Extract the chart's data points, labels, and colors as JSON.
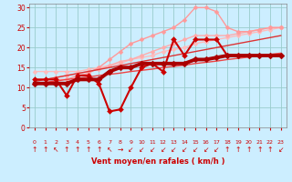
{
  "bg_color": "#cceeff",
  "grid_color": "#99cccc",
  "xlabel": "Vent moyen/en rafales ( km/h )",
  "xlim": [
    -0.5,
    23.5
  ],
  "ylim": [
    0,
    31
  ],
  "yticks": [
    0,
    5,
    10,
    15,
    20,
    25,
    30
  ],
  "xticks": [
    0,
    1,
    2,
    3,
    4,
    5,
    6,
    7,
    8,
    9,
    10,
    11,
    12,
    13,
    14,
    15,
    16,
    17,
    18,
    19,
    20,
    21,
    22,
    23
  ],
  "lines": [
    {
      "x": [
        0,
        1,
        2,
        3,
        4,
        5,
        6,
        7,
        8,
        9,
        10,
        11,
        12,
        13,
        14,
        15,
        16,
        17,
        18,
        19,
        20,
        21,
        22,
        23
      ],
      "y": [
        14,
        14,
        14,
        14,
        14,
        14.5,
        15,
        15.5,
        16,
        17,
        17.5,
        18,
        19,
        19.5,
        20,
        21,
        21.5,
        22,
        22.5,
        23,
        23.5,
        24,
        24.5,
        25
      ],
      "color": "#ffbbbb",
      "lw": 1.0,
      "marker": "D",
      "ms": 2.5,
      "zorder": 2
    },
    {
      "x": [
        0,
        1,
        2,
        3,
        4,
        5,
        6,
        7,
        8,
        9,
        10,
        11,
        12,
        13,
        14,
        15,
        16,
        17,
        18,
        19,
        20,
        21,
        22,
        23
      ],
      "y": [
        12,
        12,
        12.5,
        13,
        13.5,
        14,
        14.5,
        15.5,
        16.5,
        17,
        18,
        19,
        20,
        21,
        22,
        23,
        23,
        23,
        23,
        23.5,
        24,
        24.5,
        25,
        25
      ],
      "color": "#ffaaaa",
      "lw": 1.0,
      "marker": "D",
      "ms": 2.5,
      "zorder": 2
    },
    {
      "x": [
        0,
        1,
        2,
        3,
        4,
        5,
        6,
        7,
        8,
        9,
        10,
        11,
        12,
        13,
        14,
        15,
        16,
        17,
        18,
        19,
        20,
        21,
        22,
        23
      ],
      "y": [
        12,
        12,
        12,
        12,
        13,
        13.5,
        15,
        17,
        19,
        21,
        22,
        23,
        24,
        25,
        27,
        30,
        30,
        29,
        25,
        24,
        24,
        24.5,
        25,
        25
      ],
      "color": "#ff9999",
      "lw": 1.0,
      "marker": "D",
      "ms": 2.5,
      "zorder": 2
    },
    {
      "x": [
        0,
        1,
        2,
        3,
        4,
        5,
        6,
        7,
        8,
        9,
        10,
        11,
        12,
        13,
        14,
        15,
        16,
        17,
        18,
        19,
        20,
        21,
        22,
        23
      ],
      "y": [
        11,
        11.3,
        11.6,
        12,
        12.3,
        12.6,
        13,
        13.3,
        13.6,
        14,
        14.3,
        14.6,
        15,
        15.3,
        15.6,
        16,
        16.3,
        16.6,
        17,
        17.3,
        17.6,
        18,
        18.3,
        18.6
      ],
      "color": "#ee4444",
      "lw": 1.0,
      "marker": null,
      "ms": 0,
      "zorder": 3
    },
    {
      "x": [
        0,
        1,
        2,
        3,
        4,
        5,
        6,
        7,
        8,
        9,
        10,
        11,
        12,
        13,
        14,
        15,
        16,
        17,
        18,
        19,
        20,
        21,
        22,
        23
      ],
      "y": [
        11.5,
        12,
        12.5,
        13,
        13.5,
        14,
        14.5,
        15,
        15.5,
        16,
        16.5,
        17,
        17.5,
        18,
        18.5,
        19,
        19.5,
        20,
        20.5,
        21,
        21.5,
        22,
        22.5,
        23
      ],
      "color": "#dd3333",
      "lw": 1.0,
      "marker": null,
      "ms": 0,
      "zorder": 3
    },
    {
      "x": [
        0,
        1,
        2,
        3,
        4,
        5,
        6,
        7,
        8,
        9,
        10,
        11,
        12,
        13,
        14,
        15,
        16,
        17,
        18,
        19,
        20,
        21,
        22,
        23
      ],
      "y": [
        12,
        12,
        12,
        8,
        13,
        13,
        11,
        4,
        4.5,
        10,
        15,
        16,
        14,
        22,
        18,
        22,
        22,
        22,
        18,
        18,
        18,
        18,
        18,
        18
      ],
      "color": "#cc0000",
      "lw": 1.5,
      "marker": "D",
      "ms": 3,
      "zorder": 4
    },
    {
      "x": [
        0,
        1,
        2,
        3,
        4,
        5,
        6,
        7,
        8,
        9,
        10,
        11,
        12,
        13,
        14,
        15,
        16,
        17,
        18,
        19,
        20,
        21,
        22,
        23
      ],
      "y": [
        11,
        11,
        11,
        11,
        12,
        12,
        12,
        14,
        15,
        15,
        16,
        16,
        16,
        16,
        16,
        17,
        17,
        17.5,
        18,
        18,
        18,
        18,
        18,
        18
      ],
      "color": "#aa0000",
      "lw": 2.8,
      "marker": "D",
      "ms": 3.5,
      "zorder": 5
    }
  ],
  "wind_symbols": [
    "↑",
    "↑",
    "↖",
    "↑",
    "↑",
    "↑",
    "↑",
    "↖",
    "→",
    "↙",
    "↙",
    "↙",
    "↙",
    "↙",
    "↙",
    "↙",
    "↙",
    "↙",
    "↑",
    "↑",
    "↑",
    "↑",
    "↑",
    "↙"
  ],
  "wind_color": "#cc0000",
  "wind_fontsize": 5.5
}
